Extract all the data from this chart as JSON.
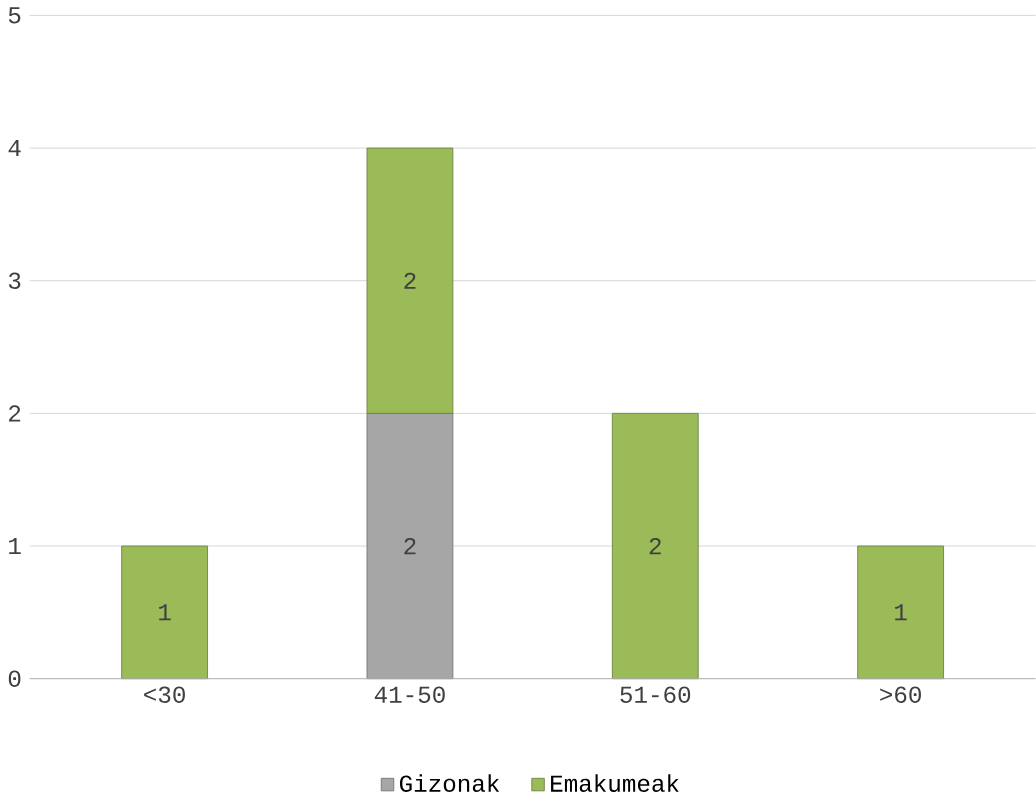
{
  "chart_data": {
    "type": "bar",
    "stacked": true,
    "categories": [
      "<30",
      "41-50",
      "51-60",
      ">60"
    ],
    "series": [
      {
        "name": "Gizonak",
        "color": "#a6a6a6",
        "values": [
          null,
          2,
          null,
          null
        ]
      },
      {
        "name": "Emakumeak",
        "color": "#9bbb59",
        "values": [
          1,
          2,
          2,
          1
        ]
      }
    ],
    "ylim": [
      0,
      5
    ],
    "yticks": [
      0,
      1,
      2,
      3,
      4,
      5
    ],
    "grid": "y",
    "legend": "bottom",
    "data_labels": true
  }
}
